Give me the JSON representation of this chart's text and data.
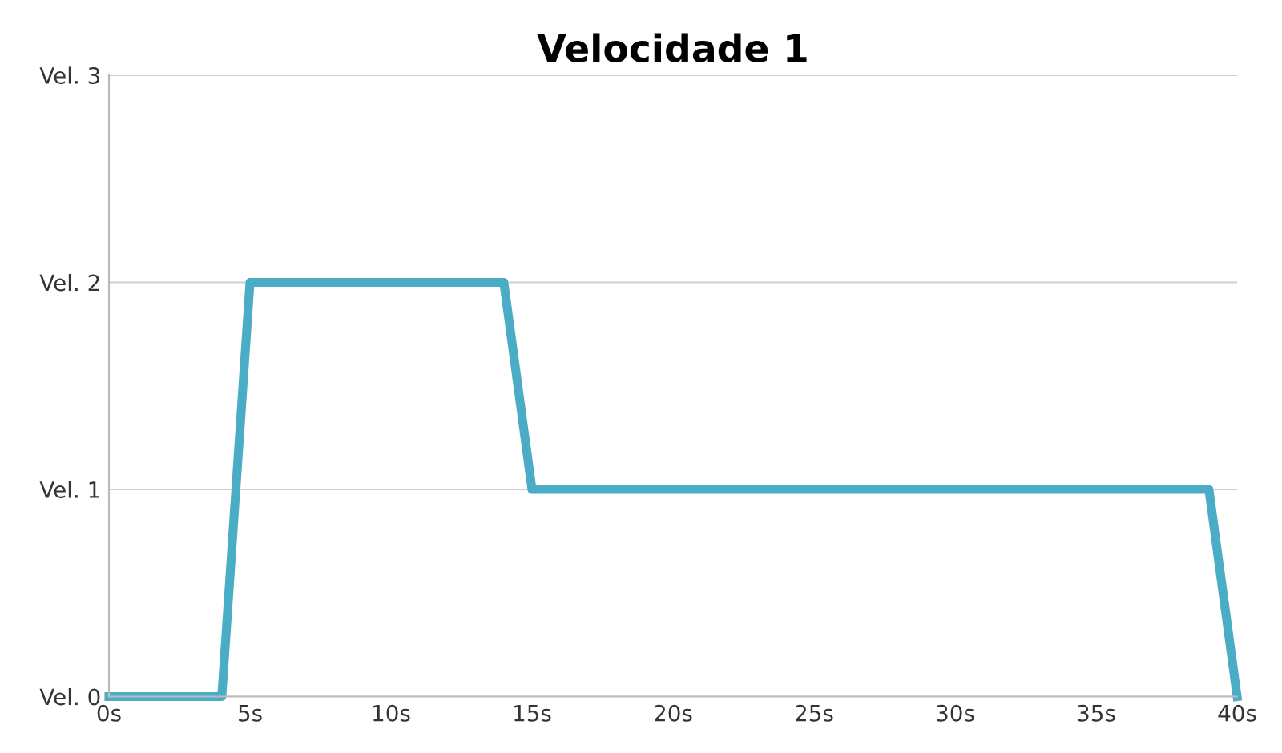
{
  "chart_data": {
    "type": "line",
    "title": "Velocidade 1",
    "x": [
      0,
      4,
      5,
      14,
      15,
      39,
      40
    ],
    "series": [
      {
        "color": "#4bacc6",
        "values": [
          0,
          0,
          2,
          2,
          1,
          1,
          0
        ]
      }
    ],
    "xlim": [
      0,
      40
    ],
    "xticks": [
      {
        "value": 0,
        "label": "0s"
      },
      {
        "value": 5,
        "label": "5s"
      },
      {
        "value": 10,
        "label": "10s"
      },
      {
        "value": 15,
        "label": "15s"
      },
      {
        "value": 20,
        "label": "20s"
      },
      {
        "value": 25,
        "label": "25s"
      },
      {
        "value": 30,
        "label": "30s"
      },
      {
        "value": 35,
        "label": "35s"
      },
      {
        "value": 40,
        "label": "40s"
      }
    ],
    "ylim": [
      0,
      3
    ],
    "yticks": [
      {
        "value": 0,
        "label": "Vel. 0"
      },
      {
        "value": 1,
        "label": "Vel. 1"
      },
      {
        "value": 2,
        "label": "Vel. 2"
      },
      {
        "value": 3,
        "label": "Vel. 3"
      }
    ],
    "grid": "y",
    "legend": false
  }
}
